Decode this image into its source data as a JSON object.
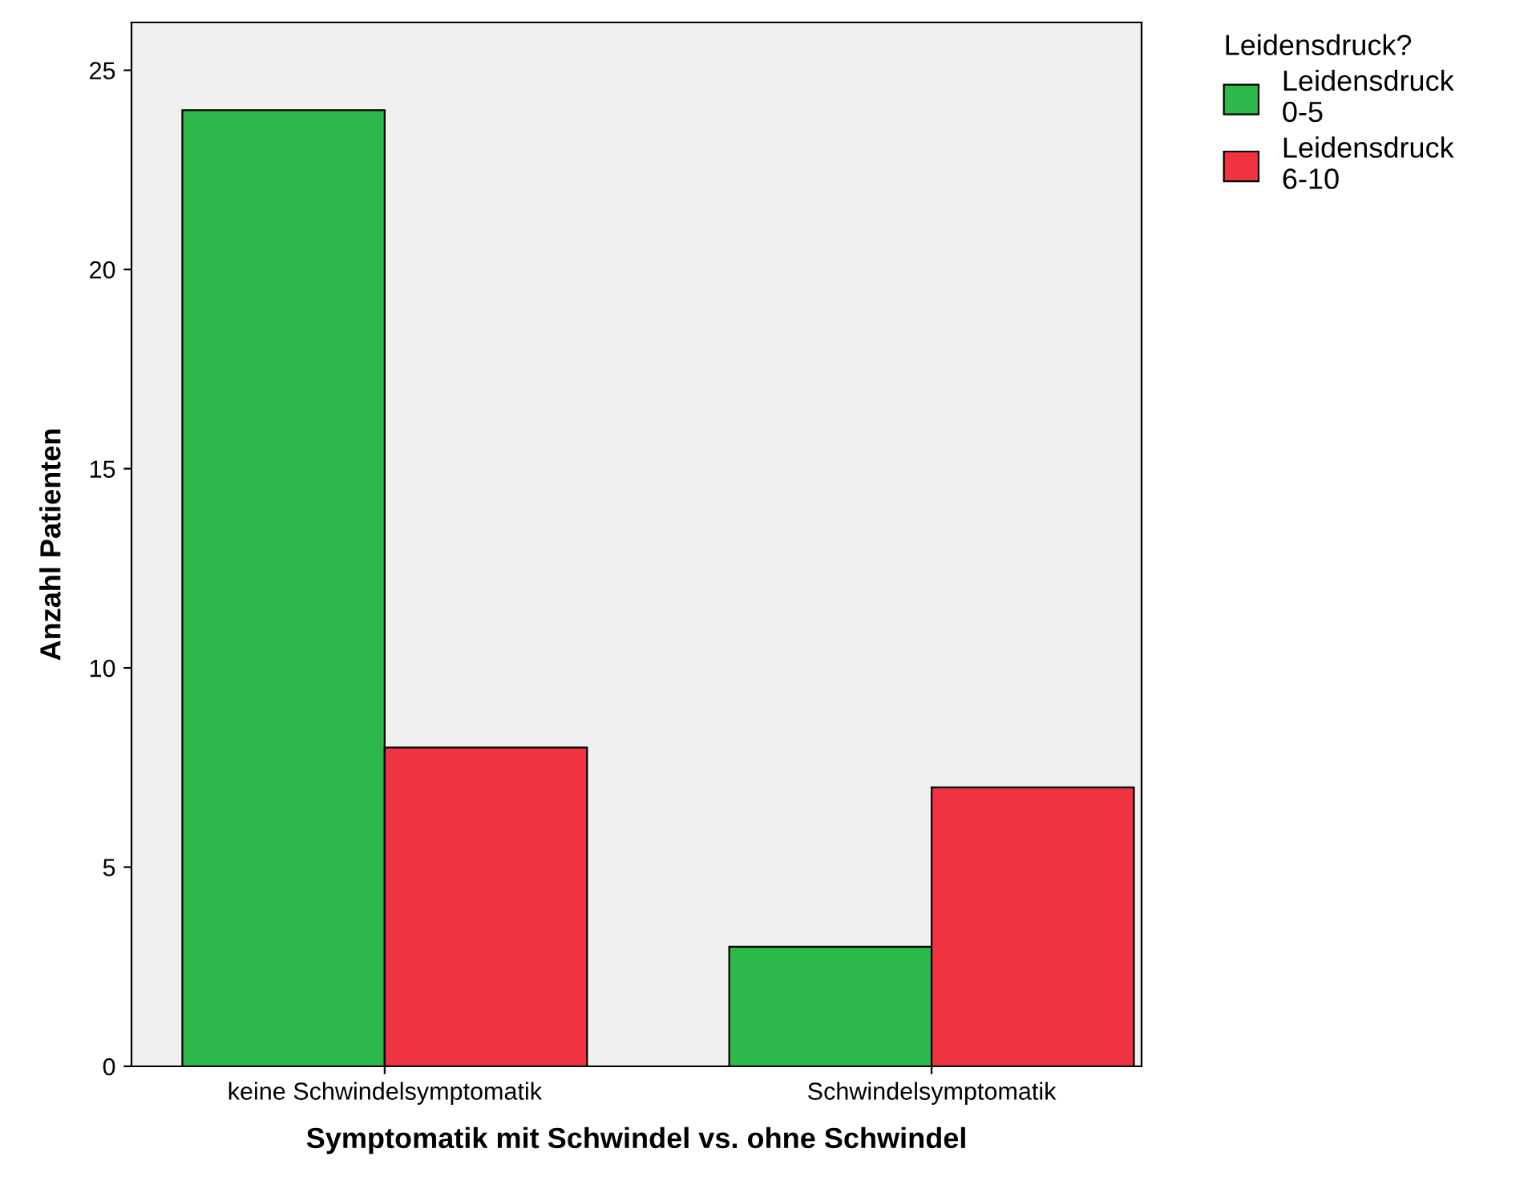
{
  "chart_data": {
    "type": "bar",
    "xlabel": "Symptomatik mit Schwindel vs. ohne Schwindel",
    "ylabel": "Anzahl Patienten",
    "legend_title": "Leidensdruck?",
    "categories": [
      "keine Schwindelsymptomatik",
      "Schwindelsymptomatik"
    ],
    "series": [
      {
        "name": "Leidensdruck\n0-5",
        "color": "#2db84b",
        "values": [
          24,
          3
        ]
      },
      {
        "name": "Leidensdruck\n6-10",
        "color": "#ef3340",
        "values": [
          8,
          7
        ]
      }
    ],
    "ylim": [
      0,
      26.2
    ],
    "yticks": [
      0,
      5,
      10,
      15,
      20,
      25
    ],
    "grid": false,
    "legend": "top right"
  }
}
